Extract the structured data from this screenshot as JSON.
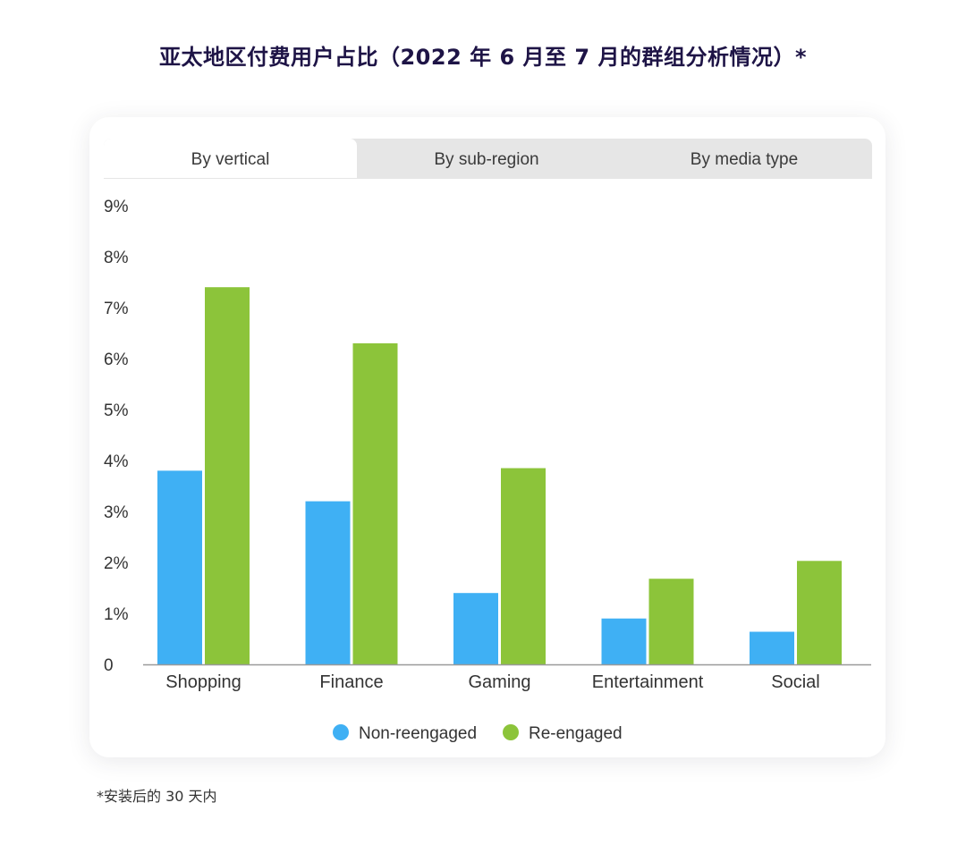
{
  "title": "亚太地区付费用户占比（2022 年 6 月至 7 月的群组分析情况）*",
  "tabs": [
    {
      "label": "By vertical",
      "active": true
    },
    {
      "label": "By sub-region",
      "active": false
    },
    {
      "label": "By media type",
      "active": false
    }
  ],
  "footnote": "*安装后的 30 天内",
  "colors": {
    "non_reengaged": "#3fb0f4",
    "re_engaged": "#8cc43a",
    "axis": "#9a9a9a",
    "text": "#333333"
  },
  "chart_data": {
    "type": "bar",
    "categories": [
      "Shopping",
      "Finance",
      "Gaming",
      "Entertainment",
      "Social"
    ],
    "series": [
      {
        "name": "Non-reengaged",
        "values": [
          3.8,
          3.2,
          1.4,
          0.9,
          0.64
        ]
      },
      {
        "name": "Re-engaged",
        "values": [
          7.4,
          6.3,
          3.85,
          1.68,
          2.03
        ]
      }
    ],
    "y_ticks": [
      "0",
      "1%",
      "2%",
      "3%",
      "4%",
      "5%",
      "6%",
      "7%",
      "8%",
      "9%"
    ],
    "ylim": [
      0,
      9
    ],
    "legend_position": "bottom-center",
    "grid": false
  }
}
